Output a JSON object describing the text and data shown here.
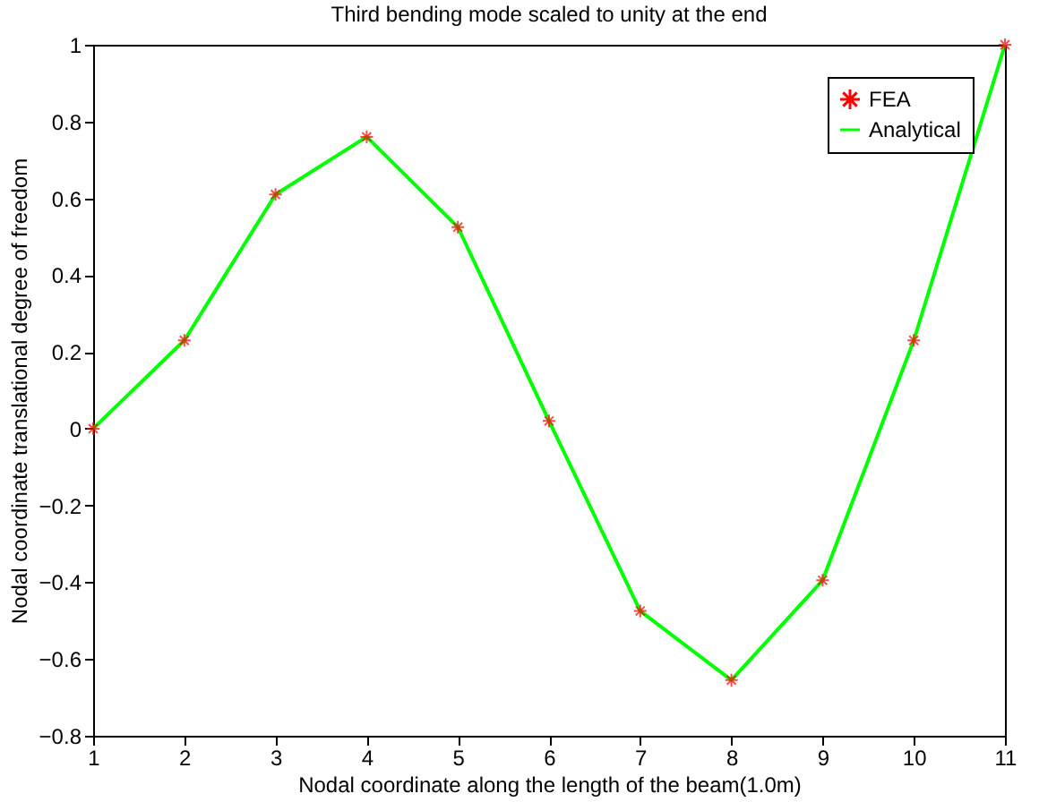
{
  "chart_data": {
    "type": "line",
    "title": "Third bending mode scaled to unity at the end",
    "xlabel": "Nodal coordinate along the length of the beam(1.0m)",
    "ylabel": "Nodal coordinate translational degree of freedom",
    "x": [
      1,
      2,
      3,
      4,
      5,
      6,
      7,
      8,
      9,
      10,
      11
    ],
    "series": [
      {
        "name": "FEA",
        "type": "scatter",
        "color": "#ff0000",
        "marker": "cross",
        "values": [
          0,
          0.23,
          0.61,
          0.76,
          0.525,
          0.02,
          -0.475,
          -0.655,
          -0.395,
          0.23,
          1.0
        ]
      },
      {
        "name": "Analytical",
        "type": "line",
        "color": "#00ff00",
        "values": [
          0,
          0.23,
          0.61,
          0.76,
          0.525,
          0.02,
          -0.475,
          -0.655,
          -0.395,
          0.23,
          1.0
        ]
      }
    ],
    "xlim": [
      1,
      11
    ],
    "xticks": [
      1,
      2,
      3,
      4,
      5,
      6,
      7,
      8,
      9,
      10,
      11
    ],
    "ylim": [
      -0.8,
      1
    ],
    "yticks": [
      -0.8,
      -0.6,
      -0.4,
      -0.2,
      0,
      0.2,
      0.4,
      0.6,
      0.8,
      1
    ],
    "grid": false,
    "legend": "top right"
  }
}
